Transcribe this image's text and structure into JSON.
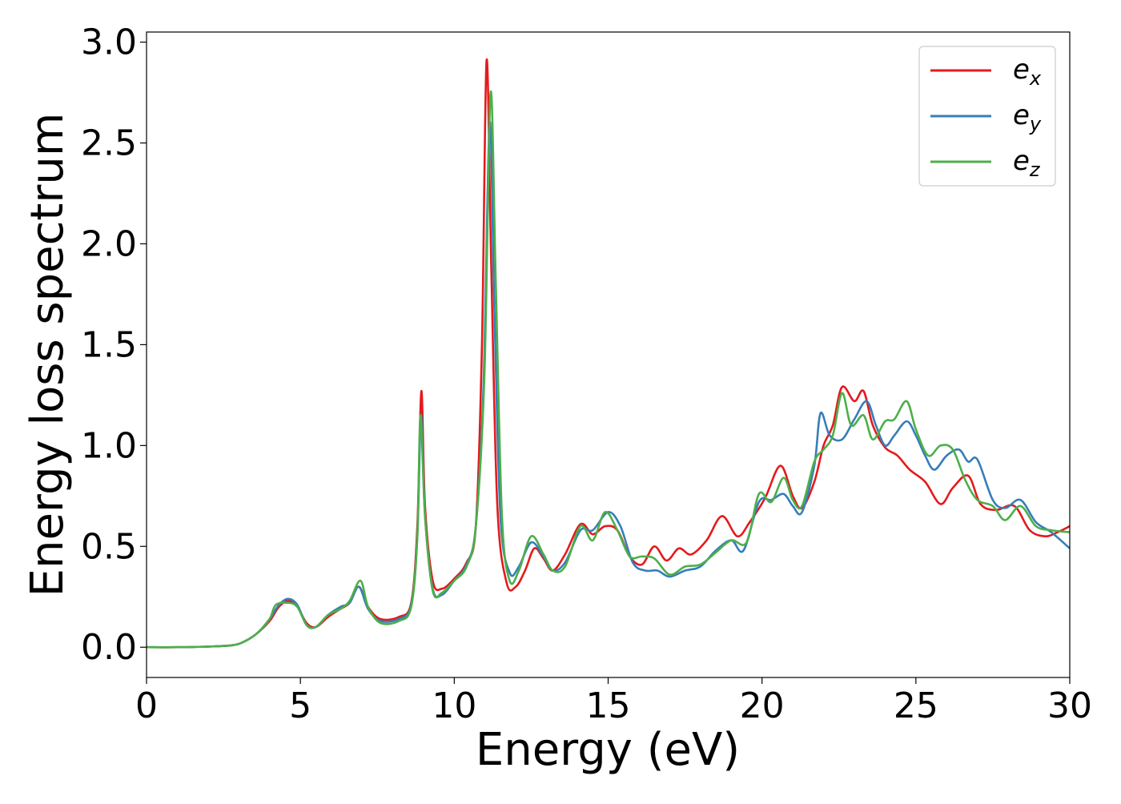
{
  "chart_data": {
    "type": "line",
    "title": "",
    "xlabel": "Energy (eV)",
    "ylabel": "Energy loss spectrum",
    "xlim": [
      0,
      30
    ],
    "ylim": [
      -0.15,
      3.05
    ],
    "xticks": [
      "0",
      "5",
      "10",
      "15",
      "20",
      "25",
      "30"
    ],
    "yticks": [
      "0.0",
      "0.5",
      "1.0",
      "1.5",
      "2.0",
      "2.5",
      "3.0"
    ],
    "grid": false,
    "legend_position": "top-right",
    "series": [
      {
        "name": "e",
        "subscript": "x",
        "color": "#e41a1c",
        "points": [
          [
            0,
            0
          ],
          [
            1,
            0
          ],
          [
            2,
            0.003
          ],
          [
            2.8,
            0.01
          ],
          [
            3.2,
            0.03
          ],
          [
            3.6,
            0.07
          ],
          [
            4.0,
            0.13
          ],
          [
            4.3,
            0.2
          ],
          [
            4.6,
            0.23
          ],
          [
            4.9,
            0.2
          ],
          [
            5.2,
            0.12
          ],
          [
            5.5,
            0.1
          ],
          [
            5.9,
            0.15
          ],
          [
            6.3,
            0.19
          ],
          [
            6.6,
            0.22
          ],
          [
            6.9,
            0.3
          ],
          [
            7.2,
            0.2
          ],
          [
            7.6,
            0.14
          ],
          [
            8.2,
            0.15
          ],
          [
            8.6,
            0.22
          ],
          [
            8.8,
            0.6
          ],
          [
            8.93,
            1.27
          ],
          [
            9.05,
            0.7
          ],
          [
            9.3,
            0.33
          ],
          [
            9.6,
            0.29
          ],
          [
            10.0,
            0.34
          ],
          [
            10.4,
            0.42
          ],
          [
            10.7,
            0.6
          ],
          [
            10.9,
            1.5
          ],
          [
            11.05,
            2.91
          ],
          [
            11.2,
            1.9
          ],
          [
            11.4,
            0.7
          ],
          [
            11.7,
            0.32
          ],
          [
            12.0,
            0.3
          ],
          [
            12.3,
            0.38
          ],
          [
            12.6,
            0.49
          ],
          [
            12.9,
            0.44
          ],
          [
            13.2,
            0.38
          ],
          [
            13.6,
            0.46
          ],
          [
            14.1,
            0.61
          ],
          [
            14.5,
            0.56
          ],
          [
            14.9,
            0.6
          ],
          [
            15.3,
            0.58
          ],
          [
            15.7,
            0.45
          ],
          [
            16.1,
            0.41
          ],
          [
            16.5,
            0.5
          ],
          [
            16.9,
            0.43
          ],
          [
            17.3,
            0.49
          ],
          [
            17.7,
            0.46
          ],
          [
            18.2,
            0.53
          ],
          [
            18.7,
            0.65
          ],
          [
            19.2,
            0.55
          ],
          [
            19.6,
            0.62
          ],
          [
            20.1,
            0.74
          ],
          [
            20.6,
            0.9
          ],
          [
            21.0,
            0.75
          ],
          [
            21.3,
            0.69
          ],
          [
            21.7,
            0.82
          ],
          [
            22.0,
            1.0
          ],
          [
            22.3,
            1.1
          ],
          [
            22.6,
            1.29
          ],
          [
            23.0,
            1.22
          ],
          [
            23.3,
            1.27
          ],
          [
            23.6,
            1.1
          ],
          [
            24.0,
            0.99
          ],
          [
            24.4,
            0.95
          ],
          [
            24.8,
            0.88
          ],
          [
            25.3,
            0.82
          ],
          [
            25.8,
            0.71
          ],
          [
            26.2,
            0.79
          ],
          [
            26.7,
            0.85
          ],
          [
            27.1,
            0.71
          ],
          [
            27.6,
            0.68
          ],
          [
            28.2,
            0.7
          ],
          [
            28.7,
            0.58
          ],
          [
            29.2,
            0.55
          ],
          [
            29.6,
            0.57
          ],
          [
            30.0,
            0.6
          ]
        ]
      },
      {
        "name": "e",
        "subscript": "y",
        "color": "#377eb8",
        "points": [
          [
            0,
            0
          ],
          [
            1,
            0
          ],
          [
            2,
            0.003
          ],
          [
            2.8,
            0.01
          ],
          [
            3.2,
            0.03
          ],
          [
            3.6,
            0.07
          ],
          [
            4.0,
            0.14
          ],
          [
            4.3,
            0.21
          ],
          [
            4.6,
            0.24
          ],
          [
            4.9,
            0.21
          ],
          [
            5.2,
            0.11
          ],
          [
            5.5,
            0.1
          ],
          [
            5.9,
            0.16
          ],
          [
            6.3,
            0.2
          ],
          [
            6.6,
            0.22
          ],
          [
            6.9,
            0.3
          ],
          [
            7.2,
            0.19
          ],
          [
            7.6,
            0.13
          ],
          [
            8.2,
            0.14
          ],
          [
            8.6,
            0.21
          ],
          [
            8.8,
            0.55
          ],
          [
            8.92,
            1.15
          ],
          [
            9.05,
            0.65
          ],
          [
            9.3,
            0.29
          ],
          [
            9.6,
            0.26
          ],
          [
            10.0,
            0.33
          ],
          [
            10.4,
            0.41
          ],
          [
            10.7,
            0.6
          ],
          [
            10.95,
            1.3
          ],
          [
            11.15,
            2.6
          ],
          [
            11.3,
            1.7
          ],
          [
            11.5,
            0.65
          ],
          [
            11.8,
            0.37
          ],
          [
            12.1,
            0.4
          ],
          [
            12.5,
            0.52
          ],
          [
            12.9,
            0.45
          ],
          [
            13.2,
            0.38
          ],
          [
            13.6,
            0.42
          ],
          [
            14.1,
            0.58
          ],
          [
            14.5,
            0.58
          ],
          [
            15.0,
            0.67
          ],
          [
            15.4,
            0.6
          ],
          [
            15.8,
            0.42
          ],
          [
            16.2,
            0.38
          ],
          [
            16.6,
            0.38
          ],
          [
            17.0,
            0.35
          ],
          [
            17.5,
            0.38
          ],
          [
            18.0,
            0.4
          ],
          [
            18.5,
            0.48
          ],
          [
            19.0,
            0.53
          ],
          [
            19.4,
            0.48
          ],
          [
            19.9,
            0.72
          ],
          [
            20.3,
            0.73
          ],
          [
            20.7,
            0.76
          ],
          [
            21.0,
            0.7
          ],
          [
            21.3,
            0.67
          ],
          [
            21.7,
            0.9
          ],
          [
            21.9,
            1.16
          ],
          [
            22.2,
            1.05
          ],
          [
            22.6,
            1.03
          ],
          [
            23.0,
            1.13
          ],
          [
            23.4,
            1.22
          ],
          [
            23.7,
            1.1
          ],
          [
            24.0,
            1.0
          ],
          [
            24.3,
            1.05
          ],
          [
            24.7,
            1.12
          ],
          [
            25.0,
            1.05
          ],
          [
            25.3,
            0.95
          ],
          [
            25.6,
            0.88
          ],
          [
            26.0,
            0.95
          ],
          [
            26.4,
            0.98
          ],
          [
            26.7,
            0.92
          ],
          [
            27.0,
            0.93
          ],
          [
            27.5,
            0.73
          ],
          [
            27.9,
            0.69
          ],
          [
            28.4,
            0.73
          ],
          [
            28.9,
            0.62
          ],
          [
            29.4,
            0.57
          ],
          [
            30.0,
            0.49
          ]
        ]
      },
      {
        "name": "e",
        "subscript": "z",
        "color": "#4daf4a",
        "points": [
          [
            0,
            0
          ],
          [
            1,
            0
          ],
          [
            2,
            0.003
          ],
          [
            2.8,
            0.01
          ],
          [
            3.2,
            0.03
          ],
          [
            3.6,
            0.07
          ],
          [
            4.0,
            0.14
          ],
          [
            4.2,
            0.21
          ],
          [
            4.6,
            0.22
          ],
          [
            4.9,
            0.2
          ],
          [
            5.2,
            0.11
          ],
          [
            5.5,
            0.1
          ],
          [
            5.9,
            0.16
          ],
          [
            6.3,
            0.19
          ],
          [
            6.6,
            0.23
          ],
          [
            6.95,
            0.33
          ],
          [
            7.2,
            0.2
          ],
          [
            7.6,
            0.12
          ],
          [
            8.2,
            0.13
          ],
          [
            8.6,
            0.2
          ],
          [
            8.8,
            0.55
          ],
          [
            8.9,
            1.15
          ],
          [
            9.05,
            0.65
          ],
          [
            9.3,
            0.28
          ],
          [
            9.6,
            0.27
          ],
          [
            10.0,
            0.33
          ],
          [
            10.4,
            0.4
          ],
          [
            10.7,
            0.6
          ],
          [
            10.98,
            1.35
          ],
          [
            11.18,
            2.75
          ],
          [
            11.35,
            1.8
          ],
          [
            11.55,
            0.65
          ],
          [
            11.8,
            0.33
          ],
          [
            12.1,
            0.38
          ],
          [
            12.5,
            0.55
          ],
          [
            12.9,
            0.46
          ],
          [
            13.2,
            0.38
          ],
          [
            13.6,
            0.4
          ],
          [
            14.1,
            0.6
          ],
          [
            14.5,
            0.53
          ],
          [
            14.9,
            0.67
          ],
          [
            15.3,
            0.58
          ],
          [
            15.7,
            0.45
          ],
          [
            16.1,
            0.45
          ],
          [
            16.5,
            0.44
          ],
          [
            17.0,
            0.36
          ],
          [
            17.5,
            0.4
          ],
          [
            18.0,
            0.41
          ],
          [
            18.5,
            0.47
          ],
          [
            19.0,
            0.53
          ],
          [
            19.5,
            0.52
          ],
          [
            19.9,
            0.76
          ],
          [
            20.3,
            0.72
          ],
          [
            20.7,
            0.84
          ],
          [
            21.0,
            0.73
          ],
          [
            21.3,
            0.7
          ],
          [
            21.7,
            0.92
          ],
          [
            22.0,
            0.98
          ],
          [
            22.3,
            1.05
          ],
          [
            22.6,
            1.26
          ],
          [
            22.9,
            1.1
          ],
          [
            23.3,
            1.15
          ],
          [
            23.6,
            1.03
          ],
          [
            24.0,
            1.12
          ],
          [
            24.3,
            1.13
          ],
          [
            24.7,
            1.22
          ],
          [
            25.0,
            1.08
          ],
          [
            25.4,
            0.95
          ],
          [
            25.8,
            1.0
          ],
          [
            26.2,
            0.98
          ],
          [
            26.6,
            0.83
          ],
          [
            27.0,
            0.73
          ],
          [
            27.5,
            0.7
          ],
          [
            27.9,
            0.63
          ],
          [
            28.4,
            0.7
          ],
          [
            28.9,
            0.6
          ],
          [
            29.4,
            0.58
          ],
          [
            30.0,
            0.57
          ]
        ]
      }
    ]
  }
}
